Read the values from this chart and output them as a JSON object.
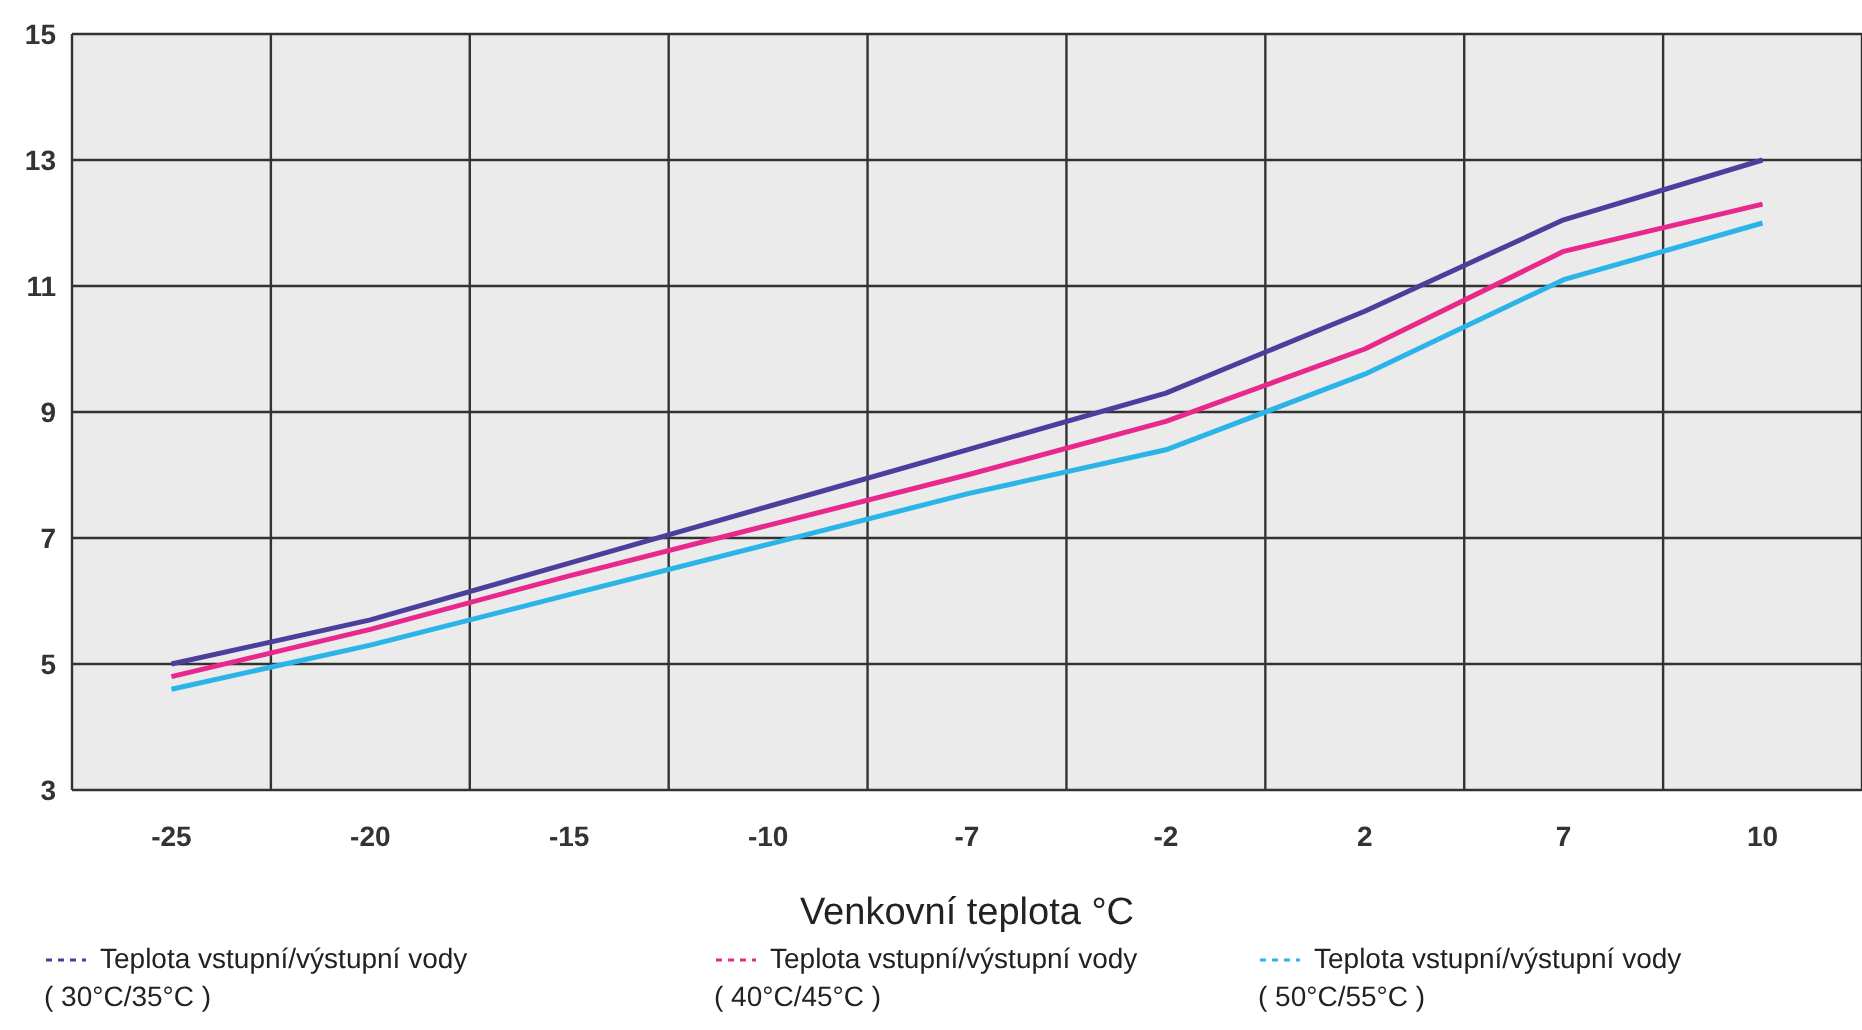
{
  "chart_data": {
    "type": "line",
    "xlabel": "Venkovní teplota °C",
    "categories": [
      "-25",
      "-20",
      "-15",
      "-10",
      "-7",
      "-2",
      "2",
      "7",
      "10"
    ],
    "series": [
      {
        "name": "Teplota vstupní/výstupní vody ( 30°C/35°C )",
        "color": "#4b3f9e",
        "values": [
          5.0,
          5.7,
          6.6,
          7.5,
          8.4,
          9.3,
          10.6,
          12.05,
          13.0
        ]
      },
      {
        "name": "Teplota vstupní/výstupní vody ( 40°C/45°C )",
        "color": "#e8288c",
        "values": [
          4.8,
          5.55,
          6.4,
          7.2,
          8.0,
          8.85,
          10.0,
          11.55,
          12.3
        ]
      },
      {
        "name": "Teplota vstupní/výstupní vody ( 50°C/55°C )",
        "color": "#2ab4e8",
        "values": [
          4.6,
          5.3,
          6.1,
          6.9,
          7.7,
          8.4,
          9.6,
          11.1,
          12.0
        ]
      }
    ],
    "ylim": [
      3,
      15
    ],
    "yticks": [
      3,
      5,
      7,
      9,
      11,
      13,
      15
    ],
    "grid": true,
    "legend": "bottom",
    "marker": "none",
    "line_style": "solid"
  }
}
